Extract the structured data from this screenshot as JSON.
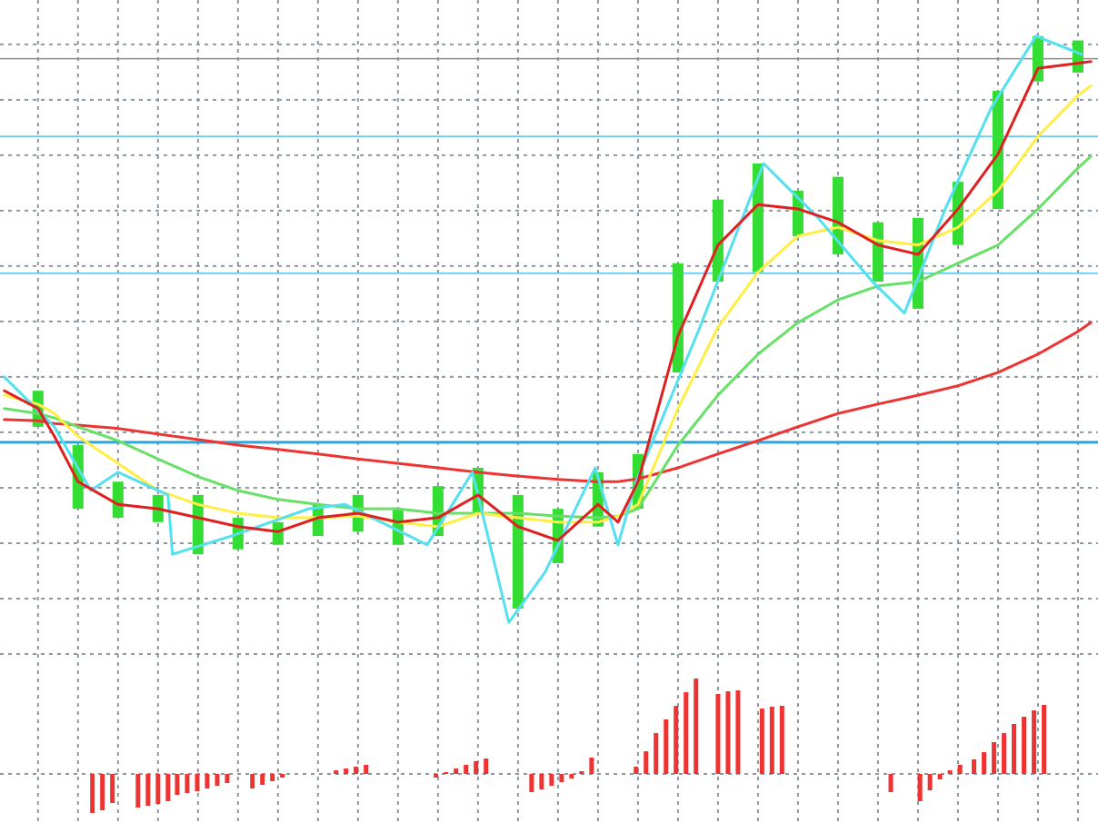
{
  "chart_data": [
    {
      "type": "line",
      "xlim": [
        -0.95,
        26.5
      ],
      "ylim": [
        0,
        11.8
      ],
      "xticks": [
        0,
        1,
        2,
        3,
        4,
        5,
        6,
        7,
        8,
        9,
        10,
        11,
        12,
        13,
        14,
        15,
        16,
        17,
        18,
        19,
        20,
        21,
        22,
        23,
        24,
        25,
        26
      ],
      "yticks": [
        0,
        1,
        2,
        3,
        4,
        5,
        6,
        7,
        8,
        9,
        10,
        11
      ],
      "grid": true,
      "levels": [
        10.74,
        9.34,
        6.87,
        3.82
      ],
      "level_colors": [
        "#8c8c8c",
        "#4fc3e8",
        "#4fc3e8",
        "#29a8e0"
      ],
      "x": [
        -0.84,
        0,
        0.41,
        1,
        2,
        3,
        4,
        5,
        6,
        7,
        8,
        9,
        10,
        11,
        12,
        13,
        14,
        14.5,
        15,
        16,
        17,
        18,
        19,
        20,
        21,
        22,
        23,
        24,
        25,
        26,
        26.32
      ],
      "candles": {
        "color": "#33dd33",
        "x": [
          0,
          1,
          2,
          3,
          4,
          5,
          6,
          7,
          8,
          9,
          10,
          11,
          12,
          13,
          14,
          15,
          16,
          17,
          18,
          19,
          20,
          21,
          22,
          23,
          24,
          25,
          26
        ],
        "highs": [
          4.75,
          3.77,
          3.11,
          2.87,
          2.87,
          2.46,
          2.38,
          2.7,
          2.87,
          2.62,
          3.03,
          3.36,
          2.87,
          2.62,
          3.28,
          3.61,
          7.05,
          8.2,
          8.85,
          8.36,
          8.61,
          7.79,
          7.87,
          8.52,
          10.16,
          11.15,
          11.07
        ],
        "lows": [
          4.1,
          2.62,
          2.46,
          2.38,
          1.8,
          1.89,
          1.97,
          2.13,
          2.21,
          1.97,
          2.13,
          2.54,
          0.82,
          1.64,
          2.3,
          2.62,
          5.08,
          6.72,
          6.89,
          7.54,
          7.21,
          6.72,
          6.23,
          7.38,
          8.03,
          10.33,
          10.49
        ]
      },
      "series": [
        {
          "color": "#ee3333",
          "values": [
            4.23,
            4.21,
            4.16,
            4.13,
            4.07,
            3.97,
            3.87,
            3.77,
            3.69,
            3.61,
            3.52,
            3.44,
            3.36,
            3.28,
            3.21,
            3.15,
            3.11,
            3.11,
            3.16,
            3.36,
            3.61,
            3.85,
            4.1,
            4.34,
            4.51,
            4.67,
            4.84,
            5.08,
            5.41,
            5.82,
            5.98
          ]
        },
        {
          "color": "#66e066",
          "values": [
            4.43,
            4.34,
            4.26,
            4.1,
            3.85,
            3.52,
            3.2,
            2.95,
            2.79,
            2.7,
            2.62,
            2.62,
            2.54,
            2.54,
            2.54,
            2.49,
            2.46,
            2.49,
            2.62,
            3.77,
            4.67,
            5.41,
            5.98,
            6.39,
            6.64,
            6.72,
            7.05,
            7.38,
            8.03,
            8.77,
            8.98
          ]
        },
        {
          "color": "#ffee44",
          "values": [
            4.67,
            4.51,
            4.34,
            3.93,
            3.44,
            2.95,
            2.7,
            2.54,
            2.46,
            2.46,
            2.49,
            2.38,
            2.3,
            2.54,
            2.46,
            2.38,
            2.38,
            2.49,
            2.7,
            4.43,
            5.9,
            6.89,
            7.54,
            7.7,
            7.46,
            7.38,
            7.7,
            8.36,
            9.34,
            10.08,
            10.25
          ]
        },
        {
          "color": "#55e0f0",
          "x": [
            -0.84,
            0.41,
            1.32,
            2,
            3.25,
            3.36,
            4.84,
            6.77,
            7.68,
            9.73,
            10.86,
            11.77,
            12.68,
            13.93,
            14.5,
            14.95,
            16.55,
            18.14,
            19.5,
            20.86,
            21.66,
            22.68,
            23.82,
            24.95,
            26.09
          ],
          "values": [
            5.0,
            4.1,
            2.95,
            3.28,
            2.87,
            1.8,
            2.13,
            2.62,
            2.7,
            1.97,
            3.28,
            0.57,
            1.48,
            3.36,
            1.97,
            3.11,
            5.9,
            8.85,
            7.87,
            6.72,
            6.15,
            8.03,
            9.84,
            11.15,
            10.82
          ]
        },
        {
          "color": "#e02020",
          "values": [
            4.75,
            4.43,
            3.93,
            3.11,
            2.7,
            2.62,
            2.46,
            2.3,
            2.21,
            2.46,
            2.54,
            2.38,
            2.46,
            2.87,
            2.3,
            2.05,
            2.7,
            2.38,
            3.11,
            5.74,
            7.38,
            8.11,
            8.03,
            7.79,
            7.38,
            7.21,
            8.03,
            9.02,
            10.57,
            10.66,
            10.69
          ]
        }
      ]
    },
    {
      "type": "bar",
      "xlim": [
        -0.95,
        26.5
      ],
      "ylim": [
        -5.4,
        13.2
      ],
      "yticks": [
        0
      ],
      "grid": true,
      "color": "#ee3333",
      "x": [
        1.36,
        1.61,
        1.86,
        2.5,
        2.75,
        3.0,
        3.25,
        3.48,
        3.73,
        3.98,
        4.23,
        4.48,
        4.73,
        5.36,
        5.61,
        5.86,
        6.11,
        7.45,
        7.7,
        7.95,
        8.2,
        9.95,
        10.2,
        10.45,
        10.7,
        10.95,
        11.2,
        12.34,
        12.59,
        12.84,
        13.09,
        13.34,
        13.59,
        13.84,
        14.95,
        15.2,
        15.45,
        15.7,
        15.95,
        16.2,
        16.45,
        17.0,
        17.25,
        17.5,
        18.1,
        18.35,
        18.6,
        21.32,
        22.05,
        22.3,
        22.55,
        22.8,
        23.05,
        23.4,
        23.65,
        23.9,
        24.15,
        24.4,
        24.65,
        24.9,
        25.15
      ],
      "values": [
        -4.3,
        -4.0,
        -3.2,
        -3.7,
        -3.5,
        -3.3,
        -3.0,
        -2.3,
        -2.1,
        -1.9,
        -1.6,
        -1.3,
        -1.0,
        -1.6,
        -1.2,
        -0.8,
        -0.4,
        0.4,
        0.6,
        0.8,
        1.0,
        -0.4,
        0.2,
        0.6,
        1.0,
        1.4,
        1.7,
        -2.0,
        -1.7,
        -1.3,
        -0.9,
        -0.5,
        0.3,
        1.8,
        0.8,
        2.5,
        4.5,
        6.0,
        7.5,
        9.0,
        10.5,
        8.8,
        9.1,
        9.2,
        7.2,
        7.4,
        7.5,
        -2.0,
        -3.0,
        -1.8,
        -0.6,
        0.4,
        1.0,
        1.6,
        2.4,
        3.5,
        4.5,
        5.5,
        6.3,
        7.0,
        7.6
      ]
    }
  ]
}
